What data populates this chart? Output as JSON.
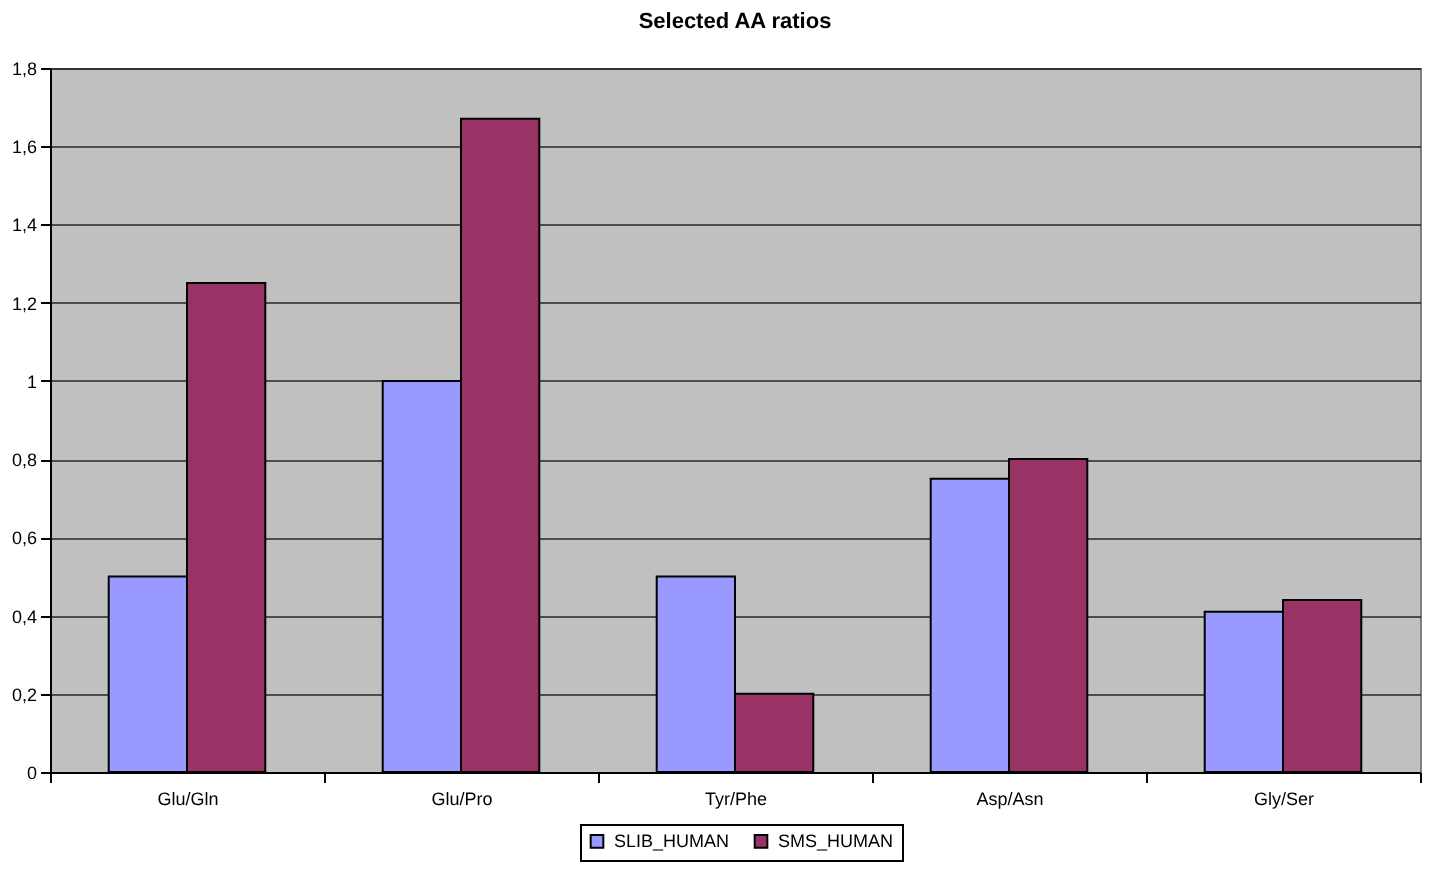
{
  "chart_data": {
    "type": "bar",
    "title": "Selected AA ratios",
    "categories": [
      "Glu/Gln",
      "Glu/Pro",
      "Tyr/Phe",
      "Asp/Asn",
      "Gly/Ser"
    ],
    "series": [
      {
        "name": "SLIB_HUMAN",
        "color": "#9999ff",
        "values": [
          0.5,
          1.0,
          0.5,
          0.75,
          0.41
        ]
      },
      {
        "name": "SMS_HUMAN",
        "color": "#993366",
        "values": [
          1.25,
          1.67,
          0.2,
          0.8,
          0.44
        ]
      }
    ],
    "ylim": [
      0,
      1.8
    ],
    "yticks": [
      {
        "value": 0,
        "label": "0"
      },
      {
        "value": 0.2,
        "label": "0,2"
      },
      {
        "value": 0.4,
        "label": "0,4"
      },
      {
        "value": 0.6,
        "label": "0,6"
      },
      {
        "value": 0.8,
        "label": "0,8"
      },
      {
        "value": 1,
        "label": "1"
      },
      {
        "value": 1.2,
        "label": "1,2"
      },
      {
        "value": 1.4,
        "label": "1,4"
      },
      {
        "value": 1.6,
        "label": "1,6"
      },
      {
        "value": 1.8,
        "label": "1,8"
      }
    ],
    "grid": "y",
    "legend": "bottom"
  }
}
